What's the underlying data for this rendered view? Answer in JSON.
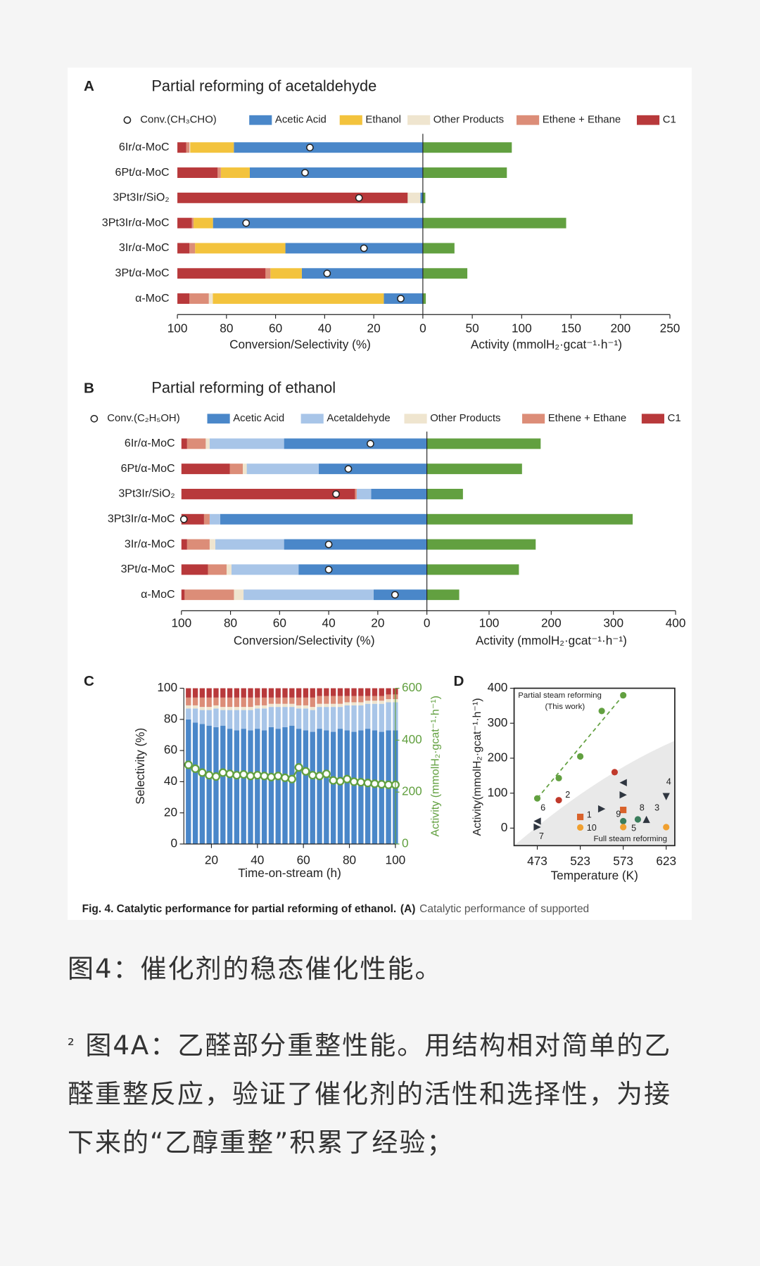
{
  "chart_data": [
    {
      "panel": "A",
      "type": "bar",
      "orientation": "horizontal",
      "title": "Partial reforming of acetaldehyde",
      "categories": [
        "6Ir/α-MoC",
        "6Pt/α-MoC",
        "3Pt3Ir/SiO₂",
        "3Pt3Ir/α-MoC",
        "3Ir/α-MoC",
        "3Pt/α-MoC",
        "α-MoC"
      ],
      "xlim": [
        100,
        0
      ],
      "xticks": [
        100,
        80,
        60,
        40,
        20,
        0
      ],
      "xlabel": "Conversion/Selectivity (%)",
      "series": [
        {
          "name": "Acetic Acid",
          "color": "#4a87c9",
          "values": [
            77,
            70.5,
            1,
            85.5,
            56,
            49.3,
            15.9
          ]
        },
        {
          "name": "Ethanol",
          "color": "#f3c33d",
          "values": [
            17.8,
            11.8,
            0,
            7.9,
            36.8,
            12.8,
            69.7
          ]
        },
        {
          "name": "Other Products",
          "color": "#efe5cf",
          "values": [
            0.3,
            0,
            5.2,
            0,
            0,
            0,
            1.6
          ]
        },
        {
          "name": "Ethene + Ethane",
          "color": "#dc8d78",
          "values": [
            1.3,
            1.3,
            0,
            0.7,
            2.3,
            2,
            7.9
          ]
        },
        {
          "name": "C1",
          "color": "#b8393b",
          "values": [
            3.6,
            16.4,
            93.8,
            5.9,
            4.9,
            35.9,
            4.9
          ]
        }
      ],
      "conversion": {
        "name": "Conv.(CH₃CHO)",
        "values": [
          46,
          48,
          26,
          72,
          24,
          39,
          9
        ]
      },
      "activity": {
        "color": "#62a040",
        "values": [
          90,
          85,
          2.5,
          145,
          32,
          45,
          3
        ],
        "xlim": [
          0,
          250
        ],
        "xticks": [
          50,
          100,
          150,
          200,
          250
        ],
        "xlabel": "Activity (mmolH₂·gcat⁻¹·h⁻¹)"
      }
    },
    {
      "panel": "B",
      "type": "bar",
      "orientation": "horizontal",
      "title": "Partial reforming of ethanol",
      "categories": [
        "6Ir/α-MoC",
        "6Pt/α-MoC",
        "3Pt3Ir/SiO₂",
        "3Pt3Ir/α-MoC",
        "3Ir/α-MoC",
        "3Pt/α-MoC",
        "α-MoC"
      ],
      "xlim": [
        100,
        0
      ],
      "xticks": [
        100,
        80,
        60,
        40,
        20,
        0
      ],
      "xlabel": "Conversion/Selectivity (%)",
      "series": [
        {
          "name": "Acetic Acid",
          "color": "#4a87c9",
          "values": [
            58.2,
            44.1,
            22.7,
            84.2,
            58.2,
            52.3,
            21.7
          ]
        },
        {
          "name": "Acetaldehyde",
          "color": "#a8c5e8",
          "values": [
            30.3,
            29.3,
            5.9,
            4.3,
            28,
            27.3,
            53
          ]
        },
        {
          "name": "Other Products",
          "color": "#efe5cf",
          "values": [
            1.6,
            1.6,
            0,
            0,
            2.3,
            2,
            3.9
          ]
        },
        {
          "name": "Ethene + Ethane",
          "color": "#dc8d78",
          "values": [
            7.6,
            5.3,
            0.7,
            2.3,
            9.2,
            7.6,
            20.1
          ]
        },
        {
          "name": "C1",
          "color": "#b8393b",
          "values": [
            2.3,
            19.7,
            70.7,
            9.2,
            2.3,
            10.8,
            1.3
          ]
        }
      ],
      "conversion": {
        "name": "Conv.(C₂H₅OH)",
        "values": [
          23,
          32,
          37,
          99,
          40,
          40,
          13
        ]
      },
      "activity": {
        "color": "#62a040",
        "values": [
          183,
          153,
          58,
          331,
          175,
          148,
          52
        ],
        "xlim": [
          0,
          400
        ],
        "xticks": [
          100,
          200,
          300,
          400
        ],
        "xlabel": "Activity (mmolH₂·gcat⁻¹·h⁻¹)"
      }
    },
    {
      "panel": "C",
      "type": "bar",
      "stacked": true,
      "x": [
        10,
        13,
        16,
        19,
        22,
        25,
        28,
        31,
        34,
        37,
        40,
        43,
        46,
        49,
        52,
        55,
        58,
        61,
        64,
        67,
        70,
        73,
        76,
        79,
        82,
        85,
        88,
        91,
        94,
        97,
        100
      ],
      "xlim": [
        8,
        100
      ],
      "xticks": [
        20,
        40,
        60,
        80,
        100
      ],
      "xlabel": "Time-on-stream (h)",
      "ylim": [
        0,
        100
      ],
      "yticks": [
        0,
        20,
        40,
        60,
        80,
        100
      ],
      "ylabel": "Selectivity (%)",
      "y2lim": [
        0,
        600
      ],
      "y2ticks": [
        0,
        200,
        400,
        600
      ],
      "y2label": "Activity (mmolH₂·gcat⁻¹·h⁻¹)",
      "series": [
        {
          "color": "#4a87c9",
          "values": [
            80,
            78,
            77,
            76,
            75,
            76,
            74,
            73,
            74,
            73,
            74,
            73,
            75,
            74,
            75,
            76,
            74,
            73,
            72,
            74,
            73,
            72,
            74,
            73,
            72,
            73,
            74,
            73,
            72,
            73,
            73
          ]
        },
        {
          "color": "#a8c5e8",
          "values": [
            7,
            9,
            9,
            10,
            12,
            10,
            12,
            13,
            12,
            13,
            13,
            14,
            13,
            14,
            13,
            12,
            13,
            14,
            14,
            14,
            15,
            16,
            14,
            16,
            17,
            16,
            16,
            17,
            18,
            18,
            18
          ]
        },
        {
          "color": "#efe5cf",
          "values": [
            2,
            2,
            2,
            2,
            2,
            2,
            2,
            2,
            2,
            2,
            2,
            2,
            2,
            2,
            2,
            2,
            2,
            2,
            2,
            2,
            2,
            2,
            2,
            2,
            2,
            2,
            2,
            2,
            2,
            2,
            2
          ]
        },
        {
          "color": "#dc8d78",
          "values": [
            5,
            5,
            6,
            6,
            5,
            6,
            6,
            6,
            6,
            6,
            5,
            5,
            4,
            4,
            4,
            4,
            5,
            5,
            6,
            5,
            5,
            5,
            5,
            4,
            4,
            4,
            3,
            3,
            3,
            3,
            3
          ]
        },
        {
          "color": "#b8393b",
          "values": [
            6,
            6,
            6,
            6,
            6,
            6,
            6,
            6,
            6,
            6,
            6,
            6,
            6,
            6,
            6,
            6,
            6,
            6,
            6,
            5,
            5,
            5,
            5,
            5,
            5,
            5,
            5,
            5,
            5,
            4,
            4
          ]
        },
        {
          "type": "line",
          "axis": "y2",
          "color": "#62a040",
          "values": [
            305,
            290,
            275,
            265,
            260,
            275,
            270,
            265,
            268,
            262,
            265,
            262,
            258,
            262,
            255,
            250,
            295,
            280,
            265,
            262,
            270,
            245,
            242,
            250,
            240,
            238,
            235,
            232,
            230,
            228,
            228
          ]
        }
      ]
    },
    {
      "panel": "D",
      "type": "scatter",
      "xlim": [
        446,
        633
      ],
      "xticks": [
        473,
        523,
        573,
        623
      ],
      "xlabel": "Temperature (K)",
      "ylim": [
        -50,
        400
      ],
      "yticks": [
        0,
        100,
        200,
        300,
        400
      ],
      "ylabel": "Activity(mmolH₂·gcat⁻¹·h⁻¹)",
      "annotation": "Full steam reforming",
      "series": [
        {
          "name": "Partial steam reforming",
          "subname": "(This work)",
          "color": "#62a040",
          "x": [
            473,
            498,
            523,
            548,
            573
          ],
          "values": [
            85,
            143,
            205,
            335,
            380
          ]
        },
        {
          "x": [
            473,
            473,
            498,
            523,
            523,
            548,
            563,
            573,
            573,
            573,
            573,
            573,
            590,
            600,
            623,
            623
          ],
          "values": [
            20,
            3,
            80,
            32,
            2,
            55,
            160,
            130,
            95,
            52,
            20,
            3,
            25,
            25,
            90,
            3
          ],
          "markers": [
            "tri-left",
            "tri-right",
            "circle",
            "square",
            "circle",
            "tri-right",
            "circle",
            "tri-left",
            "tri-right",
            "square",
            "circle",
            "circle",
            "circle",
            "tri-up",
            "tri-down",
            "circle"
          ],
          "colors": [
            "#2f3640",
            "#2f3640",
            "#c0392b",
            "#d9622b",
            "#f0a030",
            "#2f3640",
            "#c0392b",
            "#2f3640",
            "#2f3640",
            "#d9622b",
            "#3a7d5c",
            "#f0a030",
            "#3a7d5c",
            "#2f3640",
            "#2f3640",
            "#f0a030"
          ],
          "labels": [
            "6",
            "7",
            "2",
            "1",
            "10",
            null,
            null,
            null,
            null,
            null,
            "9",
            "5",
            "8",
            "3",
            "4",
            null
          ]
        }
      ]
    }
  ],
  "figure_caption": {
    "title": "Fig. 4. Catalytic performance for partial reforming of ethanol.",
    "part": "(A)",
    "text": "Catalytic performance of supported"
  },
  "article": {
    "heading": "图4：催化剂的稳态催化性能。",
    "paragraph": {
      "mark": "²",
      "text": "图4A：乙醛部分重整性能。用结构相对简单的乙醛重整反应，验证了催化剂的活性和选择性，为接下来的“乙醇重整”积累了经验；"
    }
  }
}
